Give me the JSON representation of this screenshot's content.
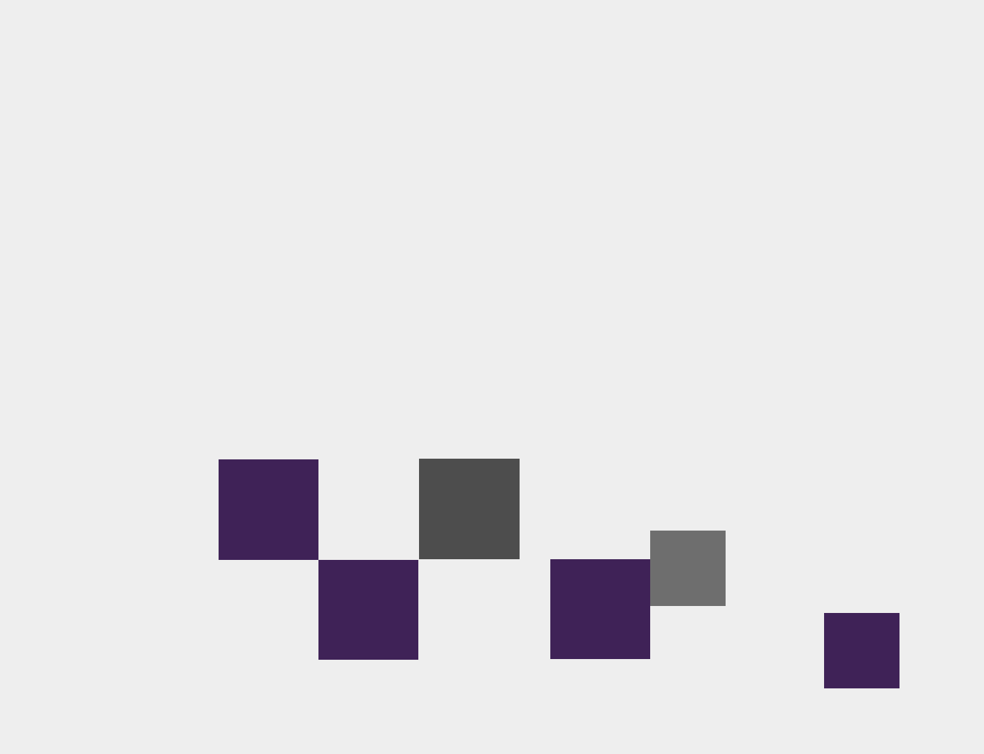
{
  "scene": {
    "background_color": "#eeeeee",
    "blocks": [
      {
        "name": "block-purple-1",
        "color": "#3f2257",
        "kind": "purple"
      },
      {
        "name": "block-purple-2",
        "color": "#3f2257",
        "kind": "purple"
      },
      {
        "name": "block-dark-gray",
        "color": "#4d4d4d",
        "kind": "dark-gray"
      },
      {
        "name": "block-purple-3",
        "color": "#3f2257",
        "kind": "purple"
      },
      {
        "name": "block-gray",
        "color": "#6e6e6e",
        "kind": "gray"
      },
      {
        "name": "block-purple-4",
        "color": "#3f2257",
        "kind": "purple"
      }
    ]
  }
}
